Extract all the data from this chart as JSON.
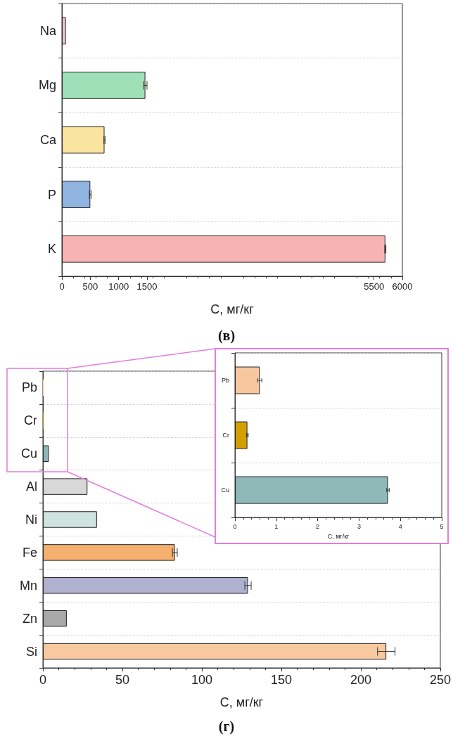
{
  "chart_data": [
    {
      "type": "bar",
      "orientation": "horizontal",
      "title": "(в)",
      "xlabel": "C, мг/кг",
      "categories": [
        "Na",
        "Mg",
        "Ca",
        "P",
        "K"
      ],
      "values": [
        70,
        1470,
        750,
        500,
        5700
      ],
      "errors": [
        null,
        30,
        10,
        15,
        10
      ],
      "colors": [
        "#f4c6c6",
        "#9fe0b8",
        "#fbe4a0",
        "#8fb4e0",
        "#f7b3b3"
      ],
      "xlim": [
        0,
        6000
      ],
      "xticks": [
        0,
        500,
        1000,
        1500,
        5500,
        6000
      ],
      "grid": "y"
    },
    {
      "type": "bar",
      "orientation": "horizontal",
      "title": "(г)",
      "xlabel": "C, мг/кг",
      "categories": [
        "Pb",
        "Cr",
        "Cu",
        "Al",
        "Ni",
        "Fe",
        "Mn",
        "Zn",
        "Si"
      ],
      "values": [
        0.6,
        0.3,
        3.7,
        28,
        34,
        83,
        129,
        15,
        216
      ],
      "errors": [
        null,
        null,
        null,
        null,
        null,
        1.5,
        2,
        null,
        5.5
      ],
      "colors": [
        "#f7c8a0",
        "#d4a000",
        "#8fb8b8",
        "#d8d8d8",
        "#cfe4e0",
        "#f5b070",
        "#b0b0d0",
        "#a8a8a8",
        "#f8c8a0"
      ],
      "xlim": [
        0,
        250
      ],
      "xticks": [
        0,
        50,
        100,
        150,
        200,
        250
      ],
      "grid": "y"
    },
    {
      "type": "bar",
      "orientation": "horizontal",
      "xlabel": "C, мг/кг",
      "categories": [
        "Pb",
        "Cr",
        "Cu"
      ],
      "values": [
        0.6,
        0.3,
        3.7
      ],
      "errors": [
        0.05,
        0.02,
        0.03
      ],
      "colors": [
        "#f7c8a0",
        "#d4a000",
        "#8fb8b8"
      ],
      "xlim": [
        0,
        5
      ],
      "xticks": [
        0,
        1,
        2,
        3,
        4,
        5
      ],
      "grid": "y"
    }
  ]
}
